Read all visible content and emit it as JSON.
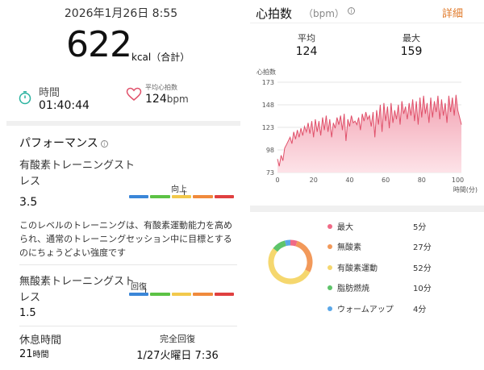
{
  "summary": {
    "date": "2026年1月26日 8:55",
    "calories": "622",
    "calories_unit": "kcal（合計）",
    "time_label": "時間",
    "time_value": "01:40:44",
    "avg_hr_label": "平均心拍数",
    "avg_hr_value": "124",
    "avg_hr_unit": "bpm"
  },
  "performance": {
    "title": "パフォーマンス",
    "info_glyph": "i",
    "aerobic_label": "有酸素トレーニングストレス",
    "aerobic_value": "3.5",
    "aerobic_scale_text": "向上",
    "aerobic_level": 0.52,
    "description": "このレベルのトレーニングは、有酸素運動能力を高められ、通常のトレーニングセッション中に目標とするのにちょうどよい強度です",
    "anaerobic_label": "無酸素トレーニングストレス",
    "anaerobic_value": "1.5",
    "anaerobic_scale_text": "回復",
    "anaerobic_level": 0.15,
    "scale_colors": [
      "#3a86d8",
      "#5cc245",
      "#f2c94c",
      "#f08a3c",
      "#e04040"
    ]
  },
  "recovery": {
    "rest_label": "休息時間",
    "rest_value": "21",
    "rest_unit": "時間",
    "full_label": "完全回復",
    "full_value": "1/27火曜日 7:36"
  },
  "heart_rate": {
    "title": "心拍数",
    "unit": "（bpm）",
    "detail_link": "詳細",
    "avg_label": "平均",
    "avg_value": "124",
    "max_label": "最大",
    "max_value": "159"
  },
  "chart_data": {
    "type": "area",
    "ylabel": "心拍数",
    "xlabel": "時間(分)",
    "yticks": [
      73,
      98,
      123,
      148,
      173
    ],
    "xticks": [
      0,
      20,
      40,
      60,
      80,
      100
    ],
    "ylim": [
      73,
      173
    ],
    "xlim": [
      0,
      102
    ],
    "color": "#e0506a",
    "x": [
      0,
      1,
      2,
      3,
      4,
      5,
      6,
      7,
      8,
      9,
      10,
      11,
      12,
      13,
      14,
      15,
      16,
      17,
      18,
      19,
      20,
      21,
      22,
      23,
      24,
      25,
      26,
      27,
      28,
      29,
      30,
      31,
      32,
      33,
      34,
      35,
      36,
      37,
      38,
      39,
      40,
      41,
      42,
      43,
      44,
      45,
      46,
      47,
      48,
      49,
      50,
      51,
      52,
      53,
      54,
      55,
      56,
      57,
      58,
      59,
      60,
      61,
      62,
      63,
      64,
      65,
      66,
      67,
      68,
      69,
      70,
      71,
      72,
      73,
      74,
      75,
      76,
      77,
      78,
      79,
      80,
      81,
      82,
      83,
      84,
      85,
      86,
      87,
      88,
      89,
      90,
      91,
      92,
      93,
      94,
      95,
      96,
      97,
      98,
      99,
      100,
      101,
      102
    ],
    "y": [
      88,
      80,
      92,
      86,
      100,
      104,
      108,
      112,
      105,
      118,
      110,
      120,
      112,
      122,
      114,
      124,
      118,
      128,
      116,
      130,
      112,
      132,
      118,
      130,
      114,
      134,
      120,
      136,
      118,
      132,
      112,
      128,
      122,
      134,
      126,
      136,
      120,
      138,
      108,
      132,
      124,
      136,
      128,
      130,
      126,
      134,
      120,
      138,
      130,
      140,
      132,
      136,
      124,
      140,
      112,
      142,
      126,
      148,
      118,
      150,
      130,
      146,
      122,
      150,
      128,
      142,
      132,
      148,
      126,
      152,
      138,
      146,
      132,
      150,
      136,
      154,
      130,
      152,
      126,
      156,
      134,
      158,
      138,
      150,
      128,
      156,
      134,
      152,
      140,
      158,
      132,
      154,
      136,
      150,
      128,
      158,
      140,
      156,
      136,
      159,
      142,
      134,
      126
    ]
  },
  "zones": [
    {
      "name": "最大",
      "minutes": "5分",
      "color": "#f06a86",
      "value": 5
    },
    {
      "name": "無酸素",
      "minutes": "27分",
      "color": "#f2995a",
      "value": 27
    },
    {
      "name": "有酸素運動",
      "minutes": "52分",
      "color": "#f5d76e",
      "value": 52
    },
    {
      "name": "脂肪燃焼",
      "minutes": "10分",
      "color": "#5ec46a",
      "value": 10
    },
    {
      "name": "ウォームアップ",
      "minutes": "4分",
      "color": "#5aa7e8",
      "value": 4
    }
  ]
}
